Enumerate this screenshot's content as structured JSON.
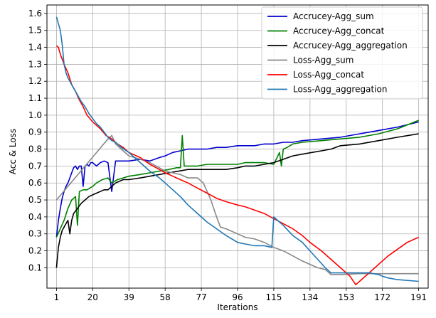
{
  "chart_data": {
    "type": "line",
    "title": "",
    "xlabel": "Iterations",
    "ylabel": "Acc & Loss",
    "xlim": [
      -4,
      196
    ],
    "ylim": [
      -0.02,
      1.65
    ],
    "x_ticks": [
      1,
      20,
      39,
      58,
      77,
      96,
      115,
      134,
      153,
      172,
      191
    ],
    "y_ticks": [
      0.1,
      0.2,
      0.3,
      0.4,
      0.5,
      0.6,
      0.7,
      0.8,
      0.9,
      1.0,
      1.1,
      1.2,
      1.3,
      1.4,
      1.5,
      1.6
    ],
    "grid": true,
    "legend_position": "top-right",
    "series": [
      {
        "name": "Accrucey-Agg_sum",
        "color": "#0000cc",
        "x": [
          1,
          2,
          3,
          4,
          5,
          6,
          7,
          8,
          9,
          10,
          11,
          12,
          13,
          14,
          15,
          16,
          17,
          18,
          19,
          20,
          22,
          24,
          26,
          28,
          30,
          32,
          35,
          39,
          45,
          50,
          55,
          58,
          62,
          66,
          70,
          75,
          80,
          85,
          90,
          96,
          100,
          105,
          110,
          115,
          120,
          125,
          130,
          140,
          150,
          160,
          170,
          180,
          191
        ],
        "y": [
          0.28,
          0.38,
          0.45,
          0.51,
          0.55,
          0.58,
          0.6,
          0.63,
          0.66,
          0.69,
          0.7,
          0.68,
          0.7,
          0.7,
          0.58,
          0.7,
          0.71,
          0.7,
          0.72,
          0.72,
          0.7,
          0.72,
          0.73,
          0.72,
          0.55,
          0.73,
          0.73,
          0.73,
          0.74,
          0.73,
          0.75,
          0.76,
          0.78,
          0.79,
          0.8,
          0.8,
          0.8,
          0.81,
          0.81,
          0.82,
          0.82,
          0.82,
          0.83,
          0.83,
          0.84,
          0.84,
          0.85,
          0.86,
          0.87,
          0.89,
          0.91,
          0.93,
          0.96
        ]
      },
      {
        "name": "Accrucey-Agg_concat",
        "color": "#008000",
        "x": [
          1,
          3,
          5,
          7,
          9,
          11,
          12,
          13,
          15,
          17,
          20,
          22,
          25,
          28,
          30,
          33,
          36,
          39,
          45,
          50,
          55,
          60,
          64,
          66,
          67,
          68,
          70,
          75,
          80,
          85,
          90,
          96,
          100,
          105,
          110,
          115,
          118,
          119,
          120,
          122,
          125,
          130,
          140,
          150,
          160,
          170,
          180,
          191
        ],
        "y": [
          0.28,
          0.33,
          0.38,
          0.45,
          0.5,
          0.52,
          0.35,
          0.55,
          0.56,
          0.56,
          0.58,
          0.6,
          0.62,
          0.63,
          0.6,
          0.62,
          0.63,
          0.64,
          0.65,
          0.66,
          0.67,
          0.68,
          0.69,
          0.69,
          0.88,
          0.7,
          0.7,
          0.7,
          0.71,
          0.71,
          0.71,
          0.71,
          0.72,
          0.72,
          0.72,
          0.71,
          0.78,
          0.7,
          0.8,
          0.81,
          0.83,
          0.84,
          0.85,
          0.86,
          0.87,
          0.89,
          0.92,
          0.97
        ]
      },
      {
        "name": "Accrucey-Agg_aggregation",
        "color": "#000000",
        "x": [
          1,
          2,
          3,
          4,
          5,
          6,
          7,
          8,
          9,
          10,
          12,
          14,
          16,
          18,
          20,
          22,
          24,
          26,
          28,
          30,
          32,
          34,
          36,
          39,
          45,
          50,
          55,
          60,
          65,
          70,
          75,
          80,
          85,
          90,
          96,
          100,
          105,
          110,
          115,
          120,
          125,
          130,
          135,
          140,
          145,
          150,
          160,
          170,
          180,
          191
        ],
        "y": [
          0.1,
          0.22,
          0.28,
          0.32,
          0.34,
          0.36,
          0.38,
          0.3,
          0.38,
          0.42,
          0.45,
          0.48,
          0.5,
          0.52,
          0.53,
          0.54,
          0.55,
          0.56,
          0.56,
          0.58,
          0.6,
          0.61,
          0.62,
          0.62,
          0.63,
          0.64,
          0.65,
          0.66,
          0.67,
          0.68,
          0.68,
          0.68,
          0.68,
          0.68,
          0.69,
          0.7,
          0.7,
          0.71,
          0.72,
          0.74,
          0.76,
          0.77,
          0.78,
          0.79,
          0.8,
          0.82,
          0.83,
          0.85,
          0.87,
          0.89
        ]
      },
      {
        "name": "Loss-Agg_sum",
        "color": "#888888",
        "x": [
          1,
          28,
          30,
          32,
          35,
          39,
          45,
          50,
          55,
          58,
          62,
          66,
          70,
          75,
          78,
          82,
          85,
          87,
          90,
          96,
          100,
          105,
          110,
          115,
          120,
          125,
          130,
          134,
          138,
          142,
          145,
          150,
          160,
          170,
          180,
          191
        ],
        "y": [
          0.5,
          0.86,
          0.88,
          0.83,
          0.8,
          0.76,
          0.74,
          0.72,
          0.69,
          0.67,
          0.66,
          0.65,
          0.63,
          0.63,
          0.6,
          0.5,
          0.4,
          0.34,
          0.33,
          0.3,
          0.28,
          0.27,
          0.25,
          0.22,
          0.2,
          0.17,
          0.14,
          0.12,
          0.1,
          0.09,
          0.06,
          0.06,
          0.065,
          0.065,
          0.065,
          0.065
        ]
      },
      {
        "name": "Loss-Agg_concat",
        "color": "#ff0000",
        "x": [
          1,
          2,
          3,
          5,
          7,
          9,
          11,
          13,
          15,
          17,
          20,
          22,
          24,
          27,
          30,
          33,
          36,
          39,
          45,
          50,
          55,
          58,
          62,
          66,
          70,
          75,
          80,
          85,
          90,
          96,
          100,
          105,
          110,
          115,
          120,
          125,
          130,
          134,
          140,
          145,
          150,
          155,
          158,
          160,
          165,
          170,
          175,
          180,
          185,
          191
        ],
        "y": [
          1.41,
          1.4,
          1.36,
          1.3,
          1.25,
          1.18,
          1.14,
          1.09,
          1.05,
          1.0,
          0.96,
          0.94,
          0.92,
          0.88,
          0.86,
          0.83,
          0.81,
          0.78,
          0.75,
          0.71,
          0.68,
          0.66,
          0.64,
          0.62,
          0.6,
          0.57,
          0.54,
          0.51,
          0.49,
          0.47,
          0.46,
          0.44,
          0.42,
          0.39,
          0.36,
          0.33,
          0.29,
          0.25,
          0.2,
          0.15,
          0.1,
          0.05,
          0.0,
          0.02,
          0.07,
          0.12,
          0.17,
          0.21,
          0.25,
          0.28
        ]
      },
      {
        "name": "Loss-Agg_aggregation",
        "color": "#1f77b4",
        "x": [
          1,
          2,
          3,
          4,
          5,
          6,
          7,
          8,
          9,
          10,
          12,
          14,
          16,
          18,
          20,
          22,
          24,
          26,
          28,
          30,
          32,
          35,
          39,
          45,
          50,
          55,
          58,
          62,
          66,
          70,
          75,
          80,
          85,
          90,
          96,
          100,
          105,
          110,
          114,
          115,
          116,
          118,
          120,
          125,
          130,
          134,
          138,
          142,
          145,
          150,
          155,
          160,
          165,
          170,
          172,
          175,
          180,
          191
        ],
        "y": [
          1.58,
          1.54,
          1.5,
          1.42,
          1.3,
          1.25,
          1.22,
          1.2,
          1.18,
          1.16,
          1.12,
          1.08,
          1.05,
          1.01,
          0.98,
          0.95,
          0.93,
          0.9,
          0.87,
          0.85,
          0.84,
          0.81,
          0.78,
          0.72,
          0.67,
          0.63,
          0.6,
          0.56,
          0.52,
          0.47,
          0.42,
          0.37,
          0.33,
          0.29,
          0.25,
          0.24,
          0.23,
          0.23,
          0.22,
          0.4,
          0.39,
          0.37,
          0.35,
          0.29,
          0.25,
          0.2,
          0.15,
          0.1,
          0.07,
          0.07,
          0.07,
          0.07,
          0.07,
          0.06,
          0.05,
          0.04,
          0.03,
          0.02
        ]
      }
    ]
  }
}
